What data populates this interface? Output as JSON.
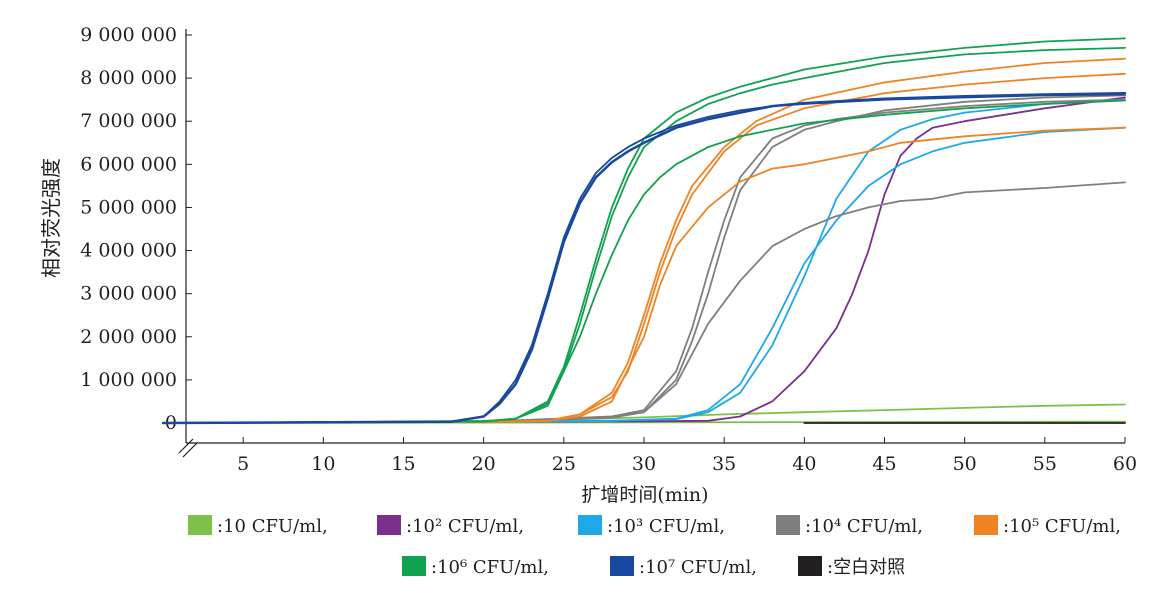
{
  "chart_data": {
    "type": "line",
    "xlabel": "扩增时间(min)",
    "ylabel": "相对荧光强度",
    "xlim": [
      0,
      60
    ],
    "ylim": [
      0,
      9000000
    ],
    "x_ticks": [
      5,
      10,
      15,
      20,
      25,
      30,
      35,
      40,
      45,
      50,
      55,
      60
    ],
    "x_tick_labels": [
      "5",
      "10",
      "15",
      "20",
      "25",
      "30",
      "35",
      "40",
      "45",
      "50",
      "55",
      "60"
    ],
    "y_ticks": [
      0,
      1000000,
      2000000,
      3000000,
      4000000,
      5000000,
      6000000,
      7000000,
      8000000,
      9000000
    ],
    "y_tick_labels": [
      "0",
      "1 000 000",
      "2 000 000",
      "3 000 000",
      "4 000 000",
      "5 000 000",
      "6 000 000",
      "7 000 000",
      "8 000 000",
      "9 000 000"
    ],
    "grid": false,
    "legend_position": "bottom",
    "legend": [
      {
        "label": ":10 CFU/ml,",
        "color": "#7dc14a"
      },
      {
        "label": ":10² CFU/ml,",
        "color": "#7b2f8e"
      },
      {
        "label": ":10³ CFU/ml,",
        "color": "#1fa8e8"
      },
      {
        "label": ":10⁴ CFU/ml,",
        "color": "#7f7f7f"
      },
      {
        "label": ":10⁵ CFU/ml,",
        "color": "#f08424"
      },
      {
        "label": ":10⁶ CFU/ml,",
        "color": "#12a150"
      },
      {
        "label": ":10⁷ CFU/ml,",
        "color": "#1848a0"
      },
      {
        "label": ":空白对照",
        "color": "#231f20"
      }
    ],
    "series": [
      {
        "color": "#7dc14a",
        "x": [
          0,
          10,
          20,
          25,
          30,
          35,
          40,
          45,
          50,
          55,
          60
        ],
        "y": [
          0,
          20000,
          50000,
          80000,
          130000,
          200000,
          250000,
          300000,
          350000,
          400000,
          430000
        ]
      },
      {
        "color": "#7dc14a",
        "x": [
          0,
          20,
          30,
          40,
          50,
          60
        ],
        "y": [
          0,
          10000,
          15000,
          20000,
          25000,
          30000
        ]
      },
      {
        "color": "#7b2f8e",
        "x": [
          0,
          10,
          20,
          30,
          34,
          36,
          38,
          40,
          42,
          43,
          44,
          45,
          46,
          47,
          48,
          50,
          55,
          60
        ],
        "y": [
          0,
          20000,
          30000,
          40000,
          50000,
          150000,
          500000,
          1200000,
          2200000,
          3000000,
          4000000,
          5300000,
          6200000,
          6600000,
          6850000,
          7000000,
          7300000,
          7550000
        ]
      },
      {
        "color": "#1fa8e8",
        "x": [
          0,
          20,
          28,
          32,
          34,
          36,
          38,
          40,
          42,
          44,
          46,
          48,
          50,
          55,
          60
        ],
        "y": [
          0,
          30000,
          50000,
          100000,
          300000,
          900000,
          2200000,
          3700000,
          4700000,
          5500000,
          6000000,
          6300000,
          6500000,
          6750000,
          6850000
        ]
      },
      {
        "color": "#1fa8e8",
        "x": [
          0,
          20,
          28,
          32,
          34,
          36,
          38,
          40,
          42,
          44,
          46,
          48,
          50,
          55,
          60
        ],
        "y": [
          0,
          30000,
          50000,
          90000,
          250000,
          700000,
          1800000,
          3400000,
          5200000,
          6300000,
          6800000,
          7050000,
          7200000,
          7400000,
          7500000
        ]
      },
      {
        "color": "#7f7f7f",
        "x": [
          0,
          20,
          28,
          30,
          32,
          33,
          34,
          35,
          36,
          38,
          40,
          42,
          45,
          50,
          55,
          60
        ],
        "y": [
          0,
          30000,
          150000,
          300000,
          1200000,
          2200000,
          3500000,
          4700000,
          5700000,
          6600000,
          6900000,
          7050000,
          7200000,
          7350000,
          7450000,
          7500000
        ]
      },
      {
        "color": "#7f7f7f",
        "x": [
          0,
          20,
          28,
          30,
          32,
          33,
          34,
          35,
          36,
          38,
          40,
          42,
          45,
          50,
          55,
          60
        ],
        "y": [
          0,
          30000,
          150000,
          250000,
          1000000,
          1900000,
          3000000,
          4300000,
          5400000,
          6400000,
          6800000,
          7000000,
          7250000,
          7450000,
          7550000,
          7600000
        ]
      },
      {
        "color": "#7f7f7f",
        "x": [
          0,
          20,
          28,
          30,
          32,
          34,
          36,
          38,
          40,
          42,
          44,
          46,
          48,
          50,
          55,
          60
        ],
        "y": [
          0,
          30000,
          120000,
          250000,
          900000,
          2300000,
          3300000,
          4100000,
          4500000,
          4800000,
          5000000,
          5150000,
          5200000,
          5350000,
          5450000,
          5580000
        ]
      },
      {
        "color": "#f08424",
        "x": [
          0,
          20,
          24,
          26,
          28,
          29,
          30,
          31,
          32,
          33,
          35,
          37,
          40,
          45,
          50,
          55,
          60
        ],
        "y": [
          0,
          30000,
          50000,
          200000,
          700000,
          1400000,
          2500000,
          3700000,
          4700000,
          5500000,
          6400000,
          7000000,
          7500000,
          7900000,
          8150000,
          8350000,
          8450000
        ]
      },
      {
        "color": "#f08424",
        "x": [
          0,
          20,
          24,
          26,
          28,
          29,
          30,
          31,
          32,
          33,
          35,
          37,
          40,
          45,
          50,
          55,
          60
        ],
        "y": [
          0,
          30000,
          50000,
          200000,
          600000,
          1200000,
          2300000,
          3500000,
          4500000,
          5300000,
          6300000,
          6900000,
          7300000,
          7650000,
          7850000,
          8000000,
          8100000
        ]
      },
      {
        "color": "#f08424",
        "x": [
          0,
          20,
          24,
          26,
          28,
          30,
          31,
          32,
          34,
          36,
          38,
          40,
          42,
          44,
          46,
          50,
          55,
          60
        ],
        "y": [
          0,
          30000,
          50000,
          150000,
          500000,
          2000000,
          3200000,
          4100000,
          5000000,
          5600000,
          5900000,
          6000000,
          6150000,
          6300000,
          6500000,
          6650000,
          6780000,
          6850000
        ]
      },
      {
        "color": "#12a150",
        "x": [
          0,
          20,
          22,
          24,
          25,
          26,
          27,
          28,
          29,
          30,
          32,
          34,
          36,
          38,
          40,
          45,
          50,
          55,
          60
        ],
        "y": [
          0,
          40000,
          100000,
          500000,
          1300000,
          2500000,
          3800000,
          5000000,
          5900000,
          6600000,
          7200000,
          7550000,
          7800000,
          8000000,
          8200000,
          8500000,
          8700000,
          8850000,
          8920000
        ]
      },
      {
        "color": "#12a150",
        "x": [
          0,
          20,
          22,
          24,
          25,
          26,
          27,
          28,
          29,
          30,
          32,
          34,
          36,
          38,
          40,
          45,
          50,
          55,
          60
        ],
        "y": [
          0,
          40000,
          100000,
          450000,
          1200000,
          2300000,
          3600000,
          4800000,
          5700000,
          6400000,
          7000000,
          7400000,
          7650000,
          7850000,
          8000000,
          8350000,
          8550000,
          8650000,
          8700000
        ]
      },
      {
        "color": "#12a150",
        "x": [
          0,
          20,
          22,
          24,
          26,
          27,
          28,
          29,
          30,
          31,
          32,
          34,
          36,
          38,
          40,
          45,
          50,
          55,
          60
        ],
        "y": [
          0,
          40000,
          100000,
          400000,
          2000000,
          3000000,
          3900000,
          4700000,
          5300000,
          5700000,
          6000000,
          6400000,
          6650000,
          6800000,
          6950000,
          7150000,
          7300000,
          7400000,
          7480000
        ]
      },
      {
        "color": "#1848a0",
        "x": [
          0,
          18,
          20,
          21,
          22,
          23,
          24,
          25,
          26,
          27,
          28,
          29,
          30,
          32,
          34,
          36,
          38,
          40,
          45,
          50,
          55,
          60
        ],
        "y": [
          0,
          30000,
          150000,
          500000,
          1000000,
          1800000,
          3000000,
          4300000,
          5200000,
          5800000,
          6150000,
          6400000,
          6600000,
          6900000,
          7100000,
          7250000,
          7350000,
          7400000,
          7500000,
          7550000,
          7600000,
          7620000
        ]
      },
      {
        "color": "#1848a0",
        "x": [
          0,
          18,
          20,
          21,
          22,
          23,
          24,
          25,
          26,
          27,
          28,
          29,
          30,
          32,
          34,
          36,
          38,
          40,
          45,
          50,
          55,
          60
        ],
        "y": [
          0,
          30000,
          150000,
          450000,
          900000,
          1700000,
          2900000,
          4200000,
          5100000,
          5700000,
          6050000,
          6300000,
          6500000,
          6850000,
          7050000,
          7200000,
          7350000,
          7420000,
          7520000,
          7580000,
          7620000,
          7650000
        ]
      },
      {
        "color": "#231f20",
        "x": [
          40,
          60
        ],
        "y": [
          0,
          0
        ]
      }
    ]
  }
}
